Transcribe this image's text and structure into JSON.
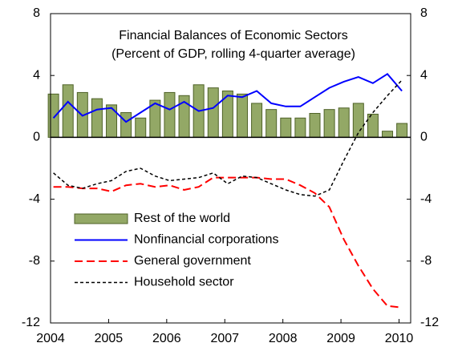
{
  "chart_data": {
    "type": "combo",
    "title": [
      "Financial Balances of Economic Sectors",
      "(Percent of GDP, rolling 4-quarter average)"
    ],
    "x": [
      2004.05,
      2004.3,
      2004.55,
      2004.8,
      2005.05,
      2005.3,
      2005.55,
      2005.8,
      2006.05,
      2006.3,
      2006.55,
      2006.8,
      2007.05,
      2007.3,
      2007.55,
      2007.8,
      2008.05,
      2008.3,
      2008.55,
      2008.8,
      2009.05,
      2009.3,
      2009.55,
      2009.8,
      2010.05
    ],
    "xlim": [
      2004,
      2010.2
    ],
    "xticks": [
      2004,
      2005,
      2006,
      2007,
      2008,
      2009,
      2010
    ],
    "ylim": [
      -12,
      8
    ],
    "yticks": [
      -12,
      -8,
      -4,
      0,
      4,
      8
    ],
    "y2lim": [
      -12,
      8
    ],
    "y2ticks": [
      -12,
      -8,
      -4,
      0,
      4,
      8
    ],
    "legend": "lower left",
    "series": [
      {
        "name": "Rest of the world",
        "kind": "bar",
        "color": "#93a866",
        "edge": "#4f6228",
        "values": [
          2.8,
          3.4,
          2.9,
          2.5,
          2.1,
          1.6,
          1.25,
          2.4,
          2.9,
          2.7,
          3.4,
          3.2,
          3.0,
          2.8,
          2.2,
          1.8,
          1.25,
          1.25,
          1.55,
          1.8,
          1.9,
          2.2,
          1.5,
          0.4,
          0.9
        ]
      },
      {
        "name": "Nonfinancial corporations",
        "kind": "line",
        "dash": "solid",
        "color": "#0000ff",
        "values": [
          1.25,
          2.3,
          1.4,
          1.8,
          1.9,
          1.0,
          1.6,
          2.2,
          1.8,
          2.3,
          1.7,
          1.9,
          2.7,
          2.6,
          3.0,
          2.2,
          2.0,
          2.0,
          2.6,
          3.2,
          3.6,
          3.9,
          3.5,
          4.1,
          3.0
        ]
      },
      {
        "name": "General government",
        "kind": "line",
        "dash": "dashed",
        "color": "#ff0000",
        "values": [
          -3.2,
          -3.2,
          -3.3,
          -3.3,
          -3.5,
          -3.1,
          -3.0,
          -3.2,
          -3.1,
          -3.4,
          -3.2,
          -2.6,
          -2.6,
          -2.6,
          -2.6,
          -2.7,
          -2.7,
          -3.1,
          -3.6,
          -4.5,
          -6.6,
          -8.3,
          -9.8,
          -10.9,
          -11.0
        ]
      },
      {
        "name": "Household sector",
        "kind": "line",
        "dash": "dotted",
        "color": "#000000",
        "values": [
          -2.3,
          -3.1,
          -3.3,
          -3.0,
          -2.8,
          -2.2,
          -2.0,
          -2.5,
          -2.8,
          -2.7,
          -2.6,
          -2.3,
          -3.0,
          -2.5,
          -2.6,
          -3.0,
          -3.4,
          -3.7,
          -3.8,
          -3.4,
          -1.5,
          0.3,
          1.6,
          2.7,
          3.7
        ]
      }
    ]
  }
}
